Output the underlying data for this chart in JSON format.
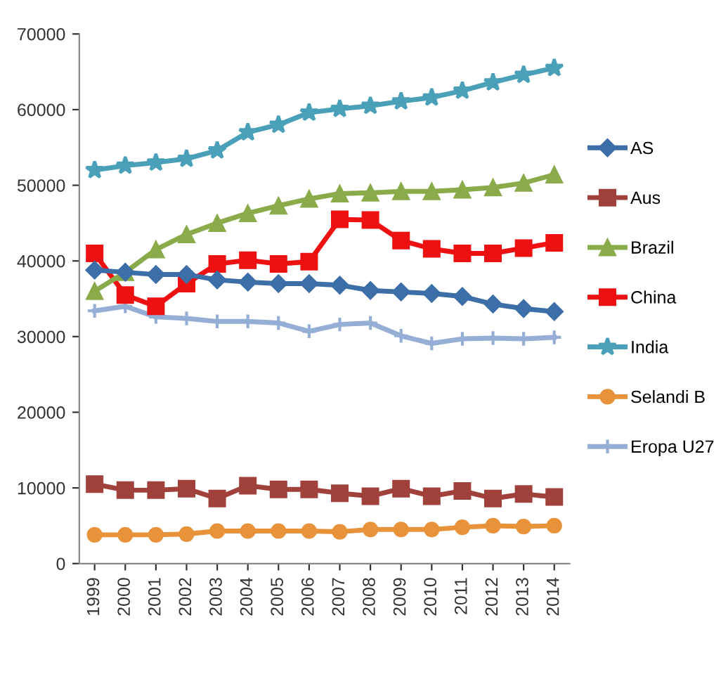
{
  "chart_data": {
    "type": "line",
    "categories": [
      "1999",
      "2000",
      "2001",
      "2002",
      "2003",
      "2004",
      "2005",
      "2006",
      "2007",
      "2008",
      "2009",
      "2010",
      "2011",
      "2012",
      "2013",
      "2014"
    ],
    "ylim": [
      0,
      70000
    ],
    "yticks": [
      0,
      10000,
      20000,
      30000,
      40000,
      50000,
      60000,
      70000
    ],
    "grid": false,
    "legend": "right",
    "line_style": "solid",
    "series": [
      {
        "name": "AS",
        "color": "#3c6ea8",
        "marker": "diamond",
        "values": [
          38800,
          38500,
          38200,
          38200,
          37500,
          37200,
          37000,
          37000,
          36800,
          36100,
          35900,
          35700,
          35300,
          34300,
          33700,
          33300
        ]
      },
      {
        "name": "Aus",
        "color": "#a0413c",
        "marker": "square",
        "values": [
          10500,
          9700,
          9700,
          9900,
          8600,
          10300,
          9800,
          9800,
          9300,
          8900,
          9900,
          8900,
          9600,
          8600,
          9200,
          8800
        ]
      },
      {
        "name": "Brazil",
        "color": "#8aab4a",
        "marker": "triangle",
        "values": [
          36000,
          38500,
          41500,
          43500,
          45000,
          46300,
          47300,
          48200,
          48900,
          49000,
          49200,
          49200,
          49400,
          49700,
          50300,
          51400
        ]
      },
      {
        "name": "China",
        "color": "#ee1111",
        "marker": "square",
        "values": [
          41000,
          35500,
          34000,
          37000,
          39600,
          40100,
          39600,
          39900,
          45500,
          45400,
          42700,
          41600,
          41000,
          41000,
          41700,
          42400
        ]
      },
      {
        "name": "India",
        "color": "#4aa0b8",
        "marker": "star",
        "values": [
          52000,
          52600,
          53000,
          53500,
          54600,
          57000,
          58000,
          59600,
          60100,
          60500,
          61100,
          61600,
          62500,
          63600,
          64600,
          65500
        ]
      },
      {
        "name": "Selandi B",
        "color": "#e8923a",
        "marker": "circle",
        "values": [
          3800,
          3800,
          3800,
          3900,
          4300,
          4300,
          4300,
          4300,
          4200,
          4500,
          4500,
          4500,
          4800,
          5000,
          4900,
          5000
        ]
      },
      {
        "name": "Eropa U27",
        "color": "#95aed6",
        "marker": "cross",
        "values": [
          33400,
          34000,
          32600,
          32400,
          32000,
          32000,
          31800,
          30700,
          31600,
          31800,
          30100,
          29100,
          29700,
          29800,
          29700,
          29900
        ]
      }
    ]
  }
}
